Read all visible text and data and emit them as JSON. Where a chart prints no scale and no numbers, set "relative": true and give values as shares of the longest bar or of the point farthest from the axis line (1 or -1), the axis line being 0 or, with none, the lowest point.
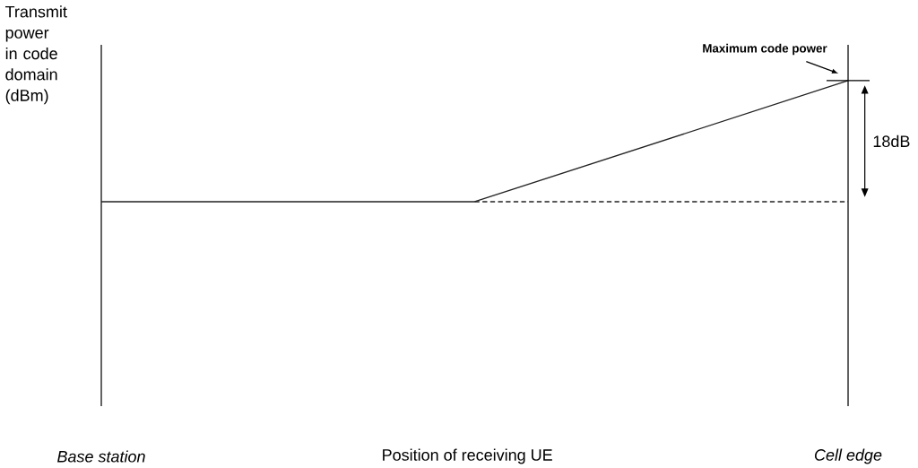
{
  "chart_data": {
    "type": "line",
    "relative": true,
    "xlabel": "Position of receiving UE",
    "ylabel": "Transmit power in code domain (dBm)",
    "categories": [
      "Base station",
      null,
      "Cell edge"
    ],
    "marker": "none",
    "series": [
      {
        "color": "#222222",
        "values": [
          0,
          0,
          1
        ]
      },
      {
        "color": "#222222",
        "values": [
          null,
          0,
          0
        ],
        "line_style": "dashed"
      }
    ],
    "annotations": [
      "18dB",
      {
        "text": "Maximum code power",
        "x": "Cell edge",
        "y": 1
      }
    ]
  }
}
